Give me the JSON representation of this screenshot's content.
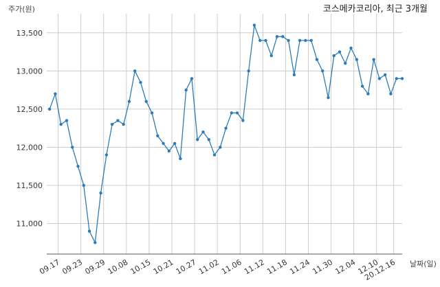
{
  "chart_data": {
    "type": "line",
    "title": "코스메카코리아, 최근 3개월",
    "ylabel": "주가(원)",
    "xlabel": "날짜(일)",
    "ylim": [
      10600,
      13750
    ],
    "yticks": [
      11000,
      11500,
      12000,
      12500,
      13000,
      13500
    ],
    "ytick_labels": [
      "11,000",
      "11,500",
      "12,000",
      "12,500",
      "13,000",
      "13,500"
    ],
    "grid": true,
    "legend": "none",
    "colors": {
      "line": "#2b7bb9",
      "grid": "#cccccc",
      "axis": "#555555"
    },
    "x_ticks": [
      {
        "label": "09.17",
        "index": 1.5
      },
      {
        "label": "09.23",
        "index": 5.5
      },
      {
        "label": "09.29",
        "index": 9.5
      },
      {
        "label": "10.08",
        "index": 13.5
      },
      {
        "label": "10.15",
        "index": 17.5
      },
      {
        "label": "10.21",
        "index": 21.5
      },
      {
        "label": "10.27",
        "index": 25.5
      },
      {
        "label": "11.02",
        "index": 29.5
      },
      {
        "label": "11.06",
        "index": 33.5
      },
      {
        "label": "11.12",
        "index": 37.5
      },
      {
        "label": "11.18",
        "index": 41.5
      },
      {
        "label": "11.24",
        "index": 45.5
      },
      {
        "label": "11.30",
        "index": 49.5
      },
      {
        "label": "12.04",
        "index": 53.5
      },
      {
        "label": "12.10",
        "index": 57.5
      },
      {
        "label": "20.12.16",
        "index": 60.5
      }
    ],
    "xlim": [
      -0.5,
      62
    ],
    "values": [
      12500,
      12700,
      12300,
      12350,
      12000,
      11750,
      11500,
      10900,
      10750,
      11400,
      11900,
      12300,
      12350,
      12300,
      12600,
      13000,
      12850,
      12600,
      12450,
      12150,
      12050,
      11950,
      12050,
      11850,
      12750,
      12900,
      12100,
      12200,
      12100,
      11900,
      12000,
      12250,
      12450,
      12450,
      12350,
      13000,
      13600,
      13400,
      13400,
      13200,
      13450,
      13450,
      13400,
      12950,
      13400,
      13400,
      13400,
      13150,
      13000,
      12650,
      13200,
      13250,
      13100,
      13300,
      13150,
      12800,
      12700,
      13150,
      12900,
      12950,
      12700,
      12900,
      12900
    ]
  }
}
